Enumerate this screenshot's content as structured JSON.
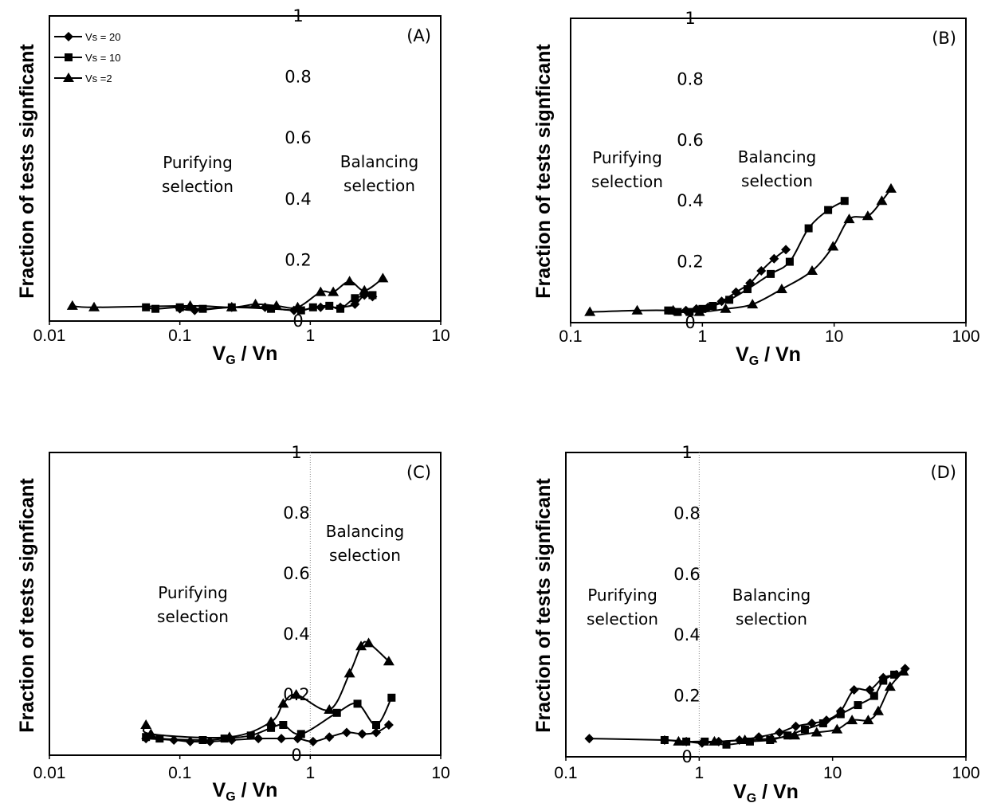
{
  "chart_data": [
    {
      "type": "line",
      "panel_label": "(A)",
      "xlabel": "V",
      "xlabel_sub": "G",
      "xlabel_rest": " / Vn",
      "ylabel": "Fraction of tests signficant",
      "xscale": "log",
      "xlim": [
        0.01,
        10
      ],
      "ylim": [
        0,
        1
      ],
      "x_ticks": [
        "0.01",
        "0.1",
        "1",
        "10"
      ],
      "y_ticks": [
        "0",
        "0.2",
        "0.4",
        "0.6",
        "0.8",
        "1"
      ],
      "annotations": [
        {
          "line1": "Purifying",
          "line2": "selection",
          "region": "left"
        },
        {
          "line1": "Balancing",
          "line2": "selection",
          "region": "right"
        }
      ],
      "legend": {
        "placement": "top-left",
        "entries": [
          "Vs = 20",
          "Vs = 10",
          "Vs =2"
        ]
      },
      "series": [
        {
          "name": "Vs = 20",
          "marker": "diamond",
          "x": [
            0.1,
            0.13,
            0.25,
            0.45,
            0.75,
            1.2,
            1.7,
            2.2,
            2.6,
            3.0
          ],
          "y": [
            0.04,
            0.035,
            0.045,
            0.045,
            0.035,
            0.045,
            0.045,
            0.055,
            0.085,
            0.08
          ]
        },
        {
          "name": "Vs = 10",
          "marker": "square",
          "x": [
            0.055,
            0.065,
            0.1,
            0.15,
            0.25,
            0.5,
            0.85,
            1.05,
            1.4,
            1.7,
            2.2,
            3.0
          ],
          "y": [
            0.045,
            0.04,
            0.045,
            0.04,
            0.045,
            0.04,
            0.035,
            0.045,
            0.05,
            0.04,
            0.075,
            0.085
          ]
        },
        {
          "name": "Vs =2",
          "marker": "triangle",
          "x": [
            0.015,
            0.022,
            0.12,
            0.25,
            0.38,
            0.55,
            0.8,
            1.2,
            1.5,
            2.0,
            2.6,
            3.6
          ],
          "y": [
            0.05,
            0.045,
            0.05,
            0.045,
            0.055,
            0.05,
            0.045,
            0.095,
            0.095,
            0.13,
            0.1,
            0.14
          ]
        }
      ]
    },
    {
      "type": "line",
      "panel_label": "(B)",
      "xlabel": "V",
      "xlabel_sub": "G",
      "xlabel_rest": " / Vn",
      "ylabel": "Fraction of tests signficant",
      "xscale": "log",
      "xlim": [
        0.1,
        100
      ],
      "ylim": [
        0,
        1
      ],
      "x_ticks": [
        "0.1",
        "1",
        "10",
        "100"
      ],
      "y_ticks": [
        "0",
        "0.2",
        "0.4",
        "0.6",
        "0.8",
        "1"
      ],
      "annotations": [
        {
          "line1": "Purifying",
          "line2": "selection",
          "region": "left"
        },
        {
          "line1": "Balancing",
          "line2": "selection",
          "region": "right"
        }
      ],
      "series": [
        {
          "name": "Vs = 20",
          "marker": "diamond",
          "x": [
            0.6,
            0.75,
            0.9,
            1.1,
            1.4,
            1.8,
            2.3,
            2.8,
            3.5,
            4.3
          ],
          "y": [
            0.04,
            0.04,
            0.045,
            0.05,
            0.07,
            0.1,
            0.13,
            0.17,
            0.21,
            0.24
          ]
        },
        {
          "name": "Vs = 10",
          "marker": "square",
          "x": [
            0.55,
            0.65,
            0.8,
            1.0,
            1.2,
            1.6,
            2.2,
            3.3,
            4.6,
            6.4,
            9.0,
            12.0
          ],
          "y": [
            0.04,
            0.035,
            0.035,
            0.045,
            0.055,
            0.075,
            0.11,
            0.16,
            0.2,
            0.31,
            0.37,
            0.4
          ]
        },
        {
          "name": "Vs =2",
          "marker": "triangle",
          "x": [
            0.14,
            0.32,
            0.6,
            0.95,
            1.5,
            2.4,
            4.0,
            6.8,
            9.8,
            13.0,
            18.0,
            23.0,
            27.0
          ],
          "y": [
            0.035,
            0.04,
            0.04,
            0.035,
            0.045,
            0.06,
            0.11,
            0.17,
            0.25,
            0.34,
            0.35,
            0.4,
            0.44
          ]
        }
      ]
    },
    {
      "type": "line",
      "panel_label": "(C)",
      "xlabel": "V",
      "xlabel_sub": "G",
      "xlabel_rest": " / Vn",
      "ylabel": "Fraction of tests signficant",
      "xscale": "log",
      "xlim": [
        0.01,
        10
      ],
      "ylim": [
        0,
        1
      ],
      "x_ticks": [
        "0.01",
        "0.1",
        "1",
        "10"
      ],
      "y_ticks": [
        "0",
        "0.2",
        "0.4",
        "0.6",
        "0.8",
        "1"
      ],
      "annotations": [
        {
          "line1": "Purifying",
          "line2": "selection",
          "region": "left"
        },
        {
          "line1": "Balancing",
          "line2": "selection",
          "region": "right"
        }
      ],
      "series": [
        {
          "name": "Vs = 20",
          "marker": "diamond",
          "x": [
            0.055,
            0.09,
            0.12,
            0.17,
            0.25,
            0.4,
            0.6,
            0.8,
            1.05,
            1.4,
            1.9,
            2.5,
            3.2,
            4.0
          ],
          "y": [
            0.055,
            0.05,
            0.045,
            0.045,
            0.05,
            0.055,
            0.055,
            0.055,
            0.045,
            0.06,
            0.075,
            0.07,
            0.075,
            0.1
          ]
        },
        {
          "name": "Vs = 10",
          "marker": "square",
          "x": [
            0.055,
            0.07,
            0.15,
            0.22,
            0.35,
            0.5,
            0.62,
            0.85,
            1.6,
            2.3,
            3.2,
            4.2
          ],
          "y": [
            0.06,
            0.055,
            0.05,
            0.055,
            0.065,
            0.09,
            0.1,
            0.07,
            0.14,
            0.17,
            0.1,
            0.19
          ]
        },
        {
          "name": "Vs =2",
          "marker": "triangle",
          "x": [
            0.055,
            0.06,
            0.24,
            0.5,
            0.62,
            0.78,
            1.4,
            2.0,
            2.45,
            2.8,
            4.0
          ],
          "y": [
            0.1,
            0.07,
            0.06,
            0.11,
            0.17,
            0.2,
            0.15,
            0.27,
            0.36,
            0.37,
            0.31
          ]
        }
      ]
    },
    {
      "type": "line",
      "panel_label": "(D)",
      "xlabel": "V",
      "xlabel_sub": "G",
      "xlabel_rest": " / Vn",
      "ylabel": "Fraction of tests signficant",
      "xscale": "log",
      "xlim": [
        0.1,
        100
      ],
      "ylim": [
        0,
        1
      ],
      "x_ticks": [
        "0.1",
        "1",
        "10",
        "100"
      ],
      "y_ticks": [
        "0",
        "0.2",
        "0.4",
        "0.6",
        "0.8",
        "1"
      ],
      "annotations": [
        {
          "line1": "Purifying",
          "line2": "selection",
          "region": "left"
        },
        {
          "line1": "Balancing",
          "line2": "selection",
          "region": "right"
        }
      ],
      "series": [
        {
          "name": "Vs = 20",
          "marker": "diamond",
          "x": [
            0.15,
            0.55,
            0.8,
            1.05,
            1.4,
            2.0,
            2.8,
            4.0,
            5.3,
            7.0,
            9.0,
            11.5,
            14.5,
            19.0,
            24.0,
            30.0,
            35.0
          ],
          "y": [
            0.06,
            0.055,
            0.05,
            0.045,
            0.05,
            0.055,
            0.065,
            0.08,
            0.1,
            0.11,
            0.12,
            0.15,
            0.22,
            0.22,
            0.26,
            0.27,
            0.29
          ]
        },
        {
          "name": "Vs = 10",
          "marker": "square",
          "x": [
            0.55,
            0.8,
            1.1,
            1.6,
            2.4,
            3.4,
            4.6,
            6.2,
            8.5,
            11.5,
            15.5,
            20.5,
            24.0,
            29.0
          ],
          "y": [
            0.055,
            0.05,
            0.05,
            0.04,
            0.05,
            0.055,
            0.07,
            0.09,
            0.11,
            0.14,
            0.17,
            0.2,
            0.25,
            0.27
          ]
        },
        {
          "name": "Vs =2",
          "marker": "triangle",
          "x": [
            0.7,
            1.3,
            2.2,
            3.5,
            5.2,
            7.6,
            10.8,
            14.0,
            18.5,
            22.0,
            27.0,
            34.0
          ],
          "y": [
            0.05,
            0.05,
            0.055,
            0.06,
            0.07,
            0.08,
            0.09,
            0.12,
            0.12,
            0.15,
            0.23,
            0.28
          ]
        }
      ]
    }
  ]
}
